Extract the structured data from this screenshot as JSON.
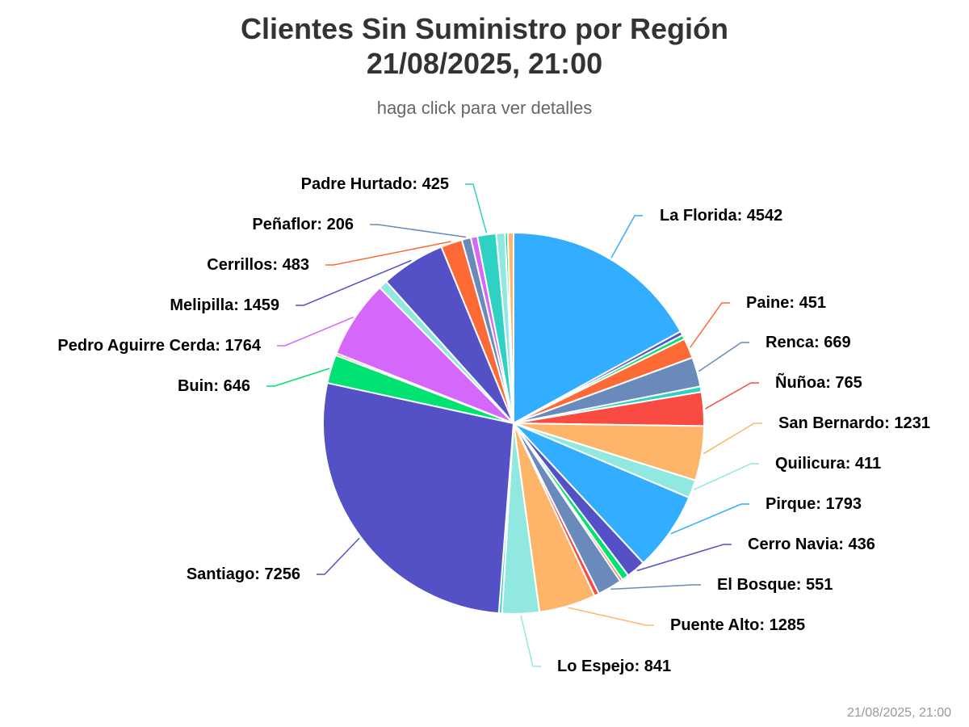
{
  "chart_data": {
    "type": "pie",
    "title_line1": "Clientes Sin Suministro por Región",
    "title_line2": "21/08/2025, 21:00",
    "subtitle": "haga click para ver detalles",
    "timestamp": "21/08/2025, 21:00",
    "slices": [
      {
        "name": "La Florida",
        "value": 4542,
        "color": "#33adff",
        "label": "La Florida: 4542"
      },
      {
        "name": "",
        "value": 95,
        "color": "#5451c6"
      },
      {
        "name": "",
        "value": 95,
        "color": "#00e272"
      },
      {
        "name": "Paine",
        "value": 451,
        "color": "#fe6a35",
        "label": "Paine: 451"
      },
      {
        "name": "Renca",
        "value": 669,
        "color": "#6b8abc",
        "label": "Renca: 669"
      },
      {
        "name": "",
        "value": 125,
        "color": "#2ed1c4"
      },
      {
        "name": "Ñuñoa",
        "value": 765,
        "color": "#fa4b42",
        "label": "Ñuñoa: 765"
      },
      {
        "name": "San Bernardo",
        "value": 1231,
        "color": "#feb56a",
        "label": "San Bernardo: 1231"
      },
      {
        "name": "Quilicura",
        "value": 411,
        "color": "#91e8e1",
        "label": "Quilicura: 411"
      },
      {
        "name": "Pirque",
        "value": 1793,
        "color": "#33adff",
        "label": "Pirque: 1793"
      },
      {
        "name": "Cerro Navia",
        "value": 436,
        "color": "#5451c6",
        "label": "Cerro Navia: 436"
      },
      {
        "name": "",
        "value": 160,
        "color": "#00e272"
      },
      {
        "name": "",
        "value": 60,
        "color": "#fe6a35"
      },
      {
        "name": "El Bosque",
        "value": 551,
        "color": "#6b8abc",
        "label": "El Bosque: 551"
      },
      {
        "name": "",
        "value": 110,
        "color": "#fa4b42"
      },
      {
        "name": "Puente Alto",
        "value": 1285,
        "color": "#feb56a",
        "label": "Puente Alto: 1285"
      },
      {
        "name": "Lo Espejo",
        "value": 841,
        "color": "#91e8e1",
        "label": "Lo Espejo: 841"
      },
      {
        "name": "",
        "value": 70,
        "color": "#2ed1c4"
      },
      {
        "name": "Santiago",
        "value": 7256,
        "color": "#5451c6",
        "label": "Santiago: 7256"
      },
      {
        "name": "Buin",
        "value": 646,
        "color": "#00e272",
        "label": "Buin: 646"
      },
      {
        "name": "",
        "value": 50,
        "color": "#fe6a35"
      },
      {
        "name": "Pedro Aguirre Cerda",
        "value": 1764,
        "color": "#d568fb",
        "label": "Pedro Aguirre Cerda: 1764"
      },
      {
        "name": "",
        "value": 200,
        "color": "#91e8e1"
      },
      {
        "name": "Melipilla",
        "value": 1459,
        "color": "#5451c6",
        "label": "Melipilla: 1459"
      },
      {
        "name": "Cerrillos",
        "value": 483,
        "color": "#fe6a35",
        "label": "Cerrillos: 483"
      },
      {
        "name": "Peñaflor",
        "value": 206,
        "color": "#6b8abc",
        "label": "Peñaflor: 206"
      },
      {
        "name": "",
        "value": 150,
        "color": "#d568fb"
      },
      {
        "name": "Padre Hurtado",
        "value": 425,
        "color": "#2ed1c4",
        "label": "Padre Hurtado: 425"
      },
      {
        "name": "",
        "value": 200,
        "color": "#91e8e1"
      },
      {
        "name": "",
        "value": 60,
        "color": "#00e272"
      },
      {
        "name": "",
        "value": 130,
        "color": "#feb56a"
      }
    ]
  }
}
